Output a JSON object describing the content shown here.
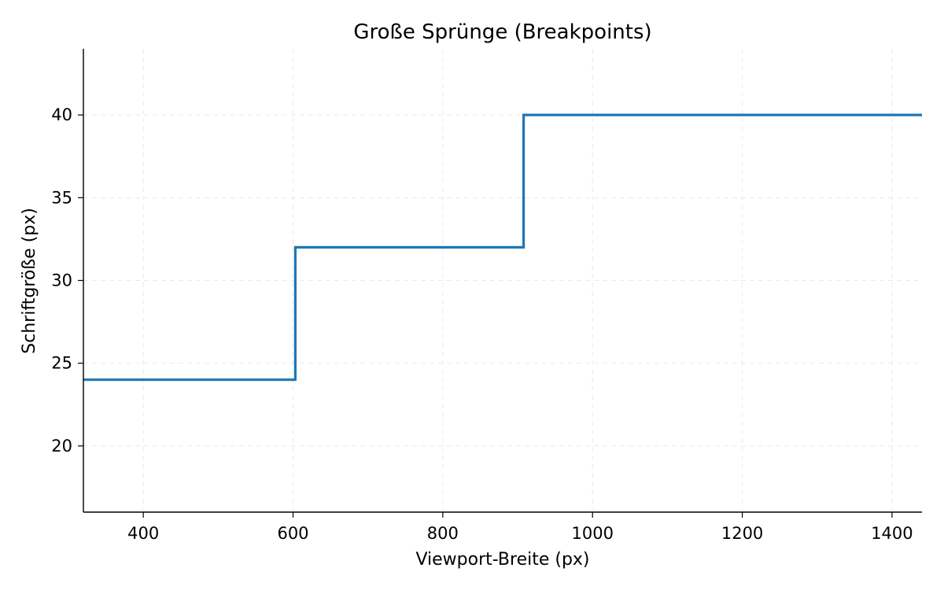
{
  "chart_data": {
    "type": "line",
    "title": "Große Sprünge (Breakpoints)",
    "xlabel": "Viewport-Breite (px)",
    "ylabel": "Schriftgröße (px)",
    "xlim": [
      320,
      1440
    ],
    "ylim": [
      16,
      44
    ],
    "xticks": [
      400,
      600,
      800,
      1000,
      1200,
      1400
    ],
    "yticks": [
      20,
      25,
      30,
      35,
      40
    ],
    "grid": true,
    "step": "post",
    "series": [
      {
        "x": [
          320,
          603,
          603,
          908,
          908,
          1440
        ],
        "y": [
          24,
          24,
          32,
          32,
          40,
          40
        ],
        "color": "#1f77b4"
      }
    ]
  }
}
